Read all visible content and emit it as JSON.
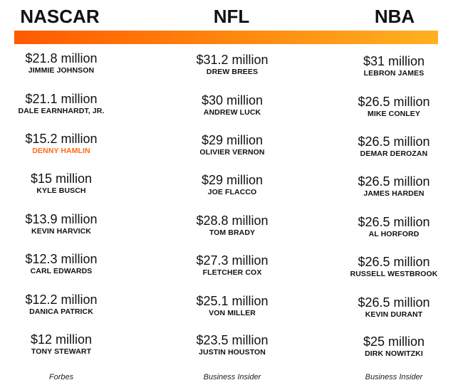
{
  "headers": {
    "nascar": "NASCAR",
    "nfl": "NFL",
    "nba": "NBA"
  },
  "columns": {
    "nascar": {
      "entries": [
        {
          "salary": "$21.8 million",
          "name": "JIMMIE JOHNSON"
        },
        {
          "salary": "$21.1 million",
          "name": "DALE EARNHARDT, JR."
        },
        {
          "salary": "$15.2 million",
          "name": "DENNY HAMLIN",
          "highlight": true
        },
        {
          "salary": "$15 million",
          "name": "KYLE BUSCH"
        },
        {
          "salary": "$13.9 million",
          "name": "KEVIN HARVICK"
        },
        {
          "salary": "$12.3 million",
          "name": "CARL EDWARDS"
        },
        {
          "salary": "$12.2 million",
          "name": "DANICA PATRICK"
        },
        {
          "salary": "$12 million",
          "name": "TONY STEWART"
        }
      ],
      "source": "Forbes"
    },
    "nfl": {
      "entries": [
        {
          "salary": "$31.2 million",
          "name": "DREW BREES"
        },
        {
          "salary": "$30 million",
          "name": "ANDREW LUCK"
        },
        {
          "salary": "$29 million",
          "name": "OLIVIER VERNON"
        },
        {
          "salary": "$29 million",
          "name": "JOE FLACCO"
        },
        {
          "salary": "$28.8 million",
          "name": "TOM BRADY"
        },
        {
          "salary": "$27.3 million",
          "name": "FLETCHER COX"
        },
        {
          "salary": "$25.1 million",
          "name": "VON MILLER"
        },
        {
          "salary": "$23.5 million",
          "name": "JUSTIN HOUSTON"
        }
      ],
      "source": "Business Insider"
    },
    "nba": {
      "entries": [
        {
          "salary": "$31 million",
          "name": "LEBRON JAMES"
        },
        {
          "salary": "$26.5 million",
          "name": "MIKE CONLEY"
        },
        {
          "salary": "$26.5 million",
          "name": "DEMAR DEROZAN"
        },
        {
          "salary": "$26.5 million",
          "name": "JAMES HARDEN"
        },
        {
          "salary": "$26.5 million",
          "name": "AL HORFORD"
        },
        {
          "salary": "$26.5 million",
          "name": "RUSSELL WESTBROOK"
        },
        {
          "salary": "$26.5 million",
          "name": "KEVIN DURANT"
        },
        {
          "salary": "$25 million",
          "name": "DIRK NOWITZKI"
        }
      ],
      "source": "Business Insider"
    }
  },
  "colors": {
    "bar_start": "#ff5a00",
    "bar_end": "#ffb020",
    "highlight": "#ff6a13",
    "text": "#111111"
  }
}
